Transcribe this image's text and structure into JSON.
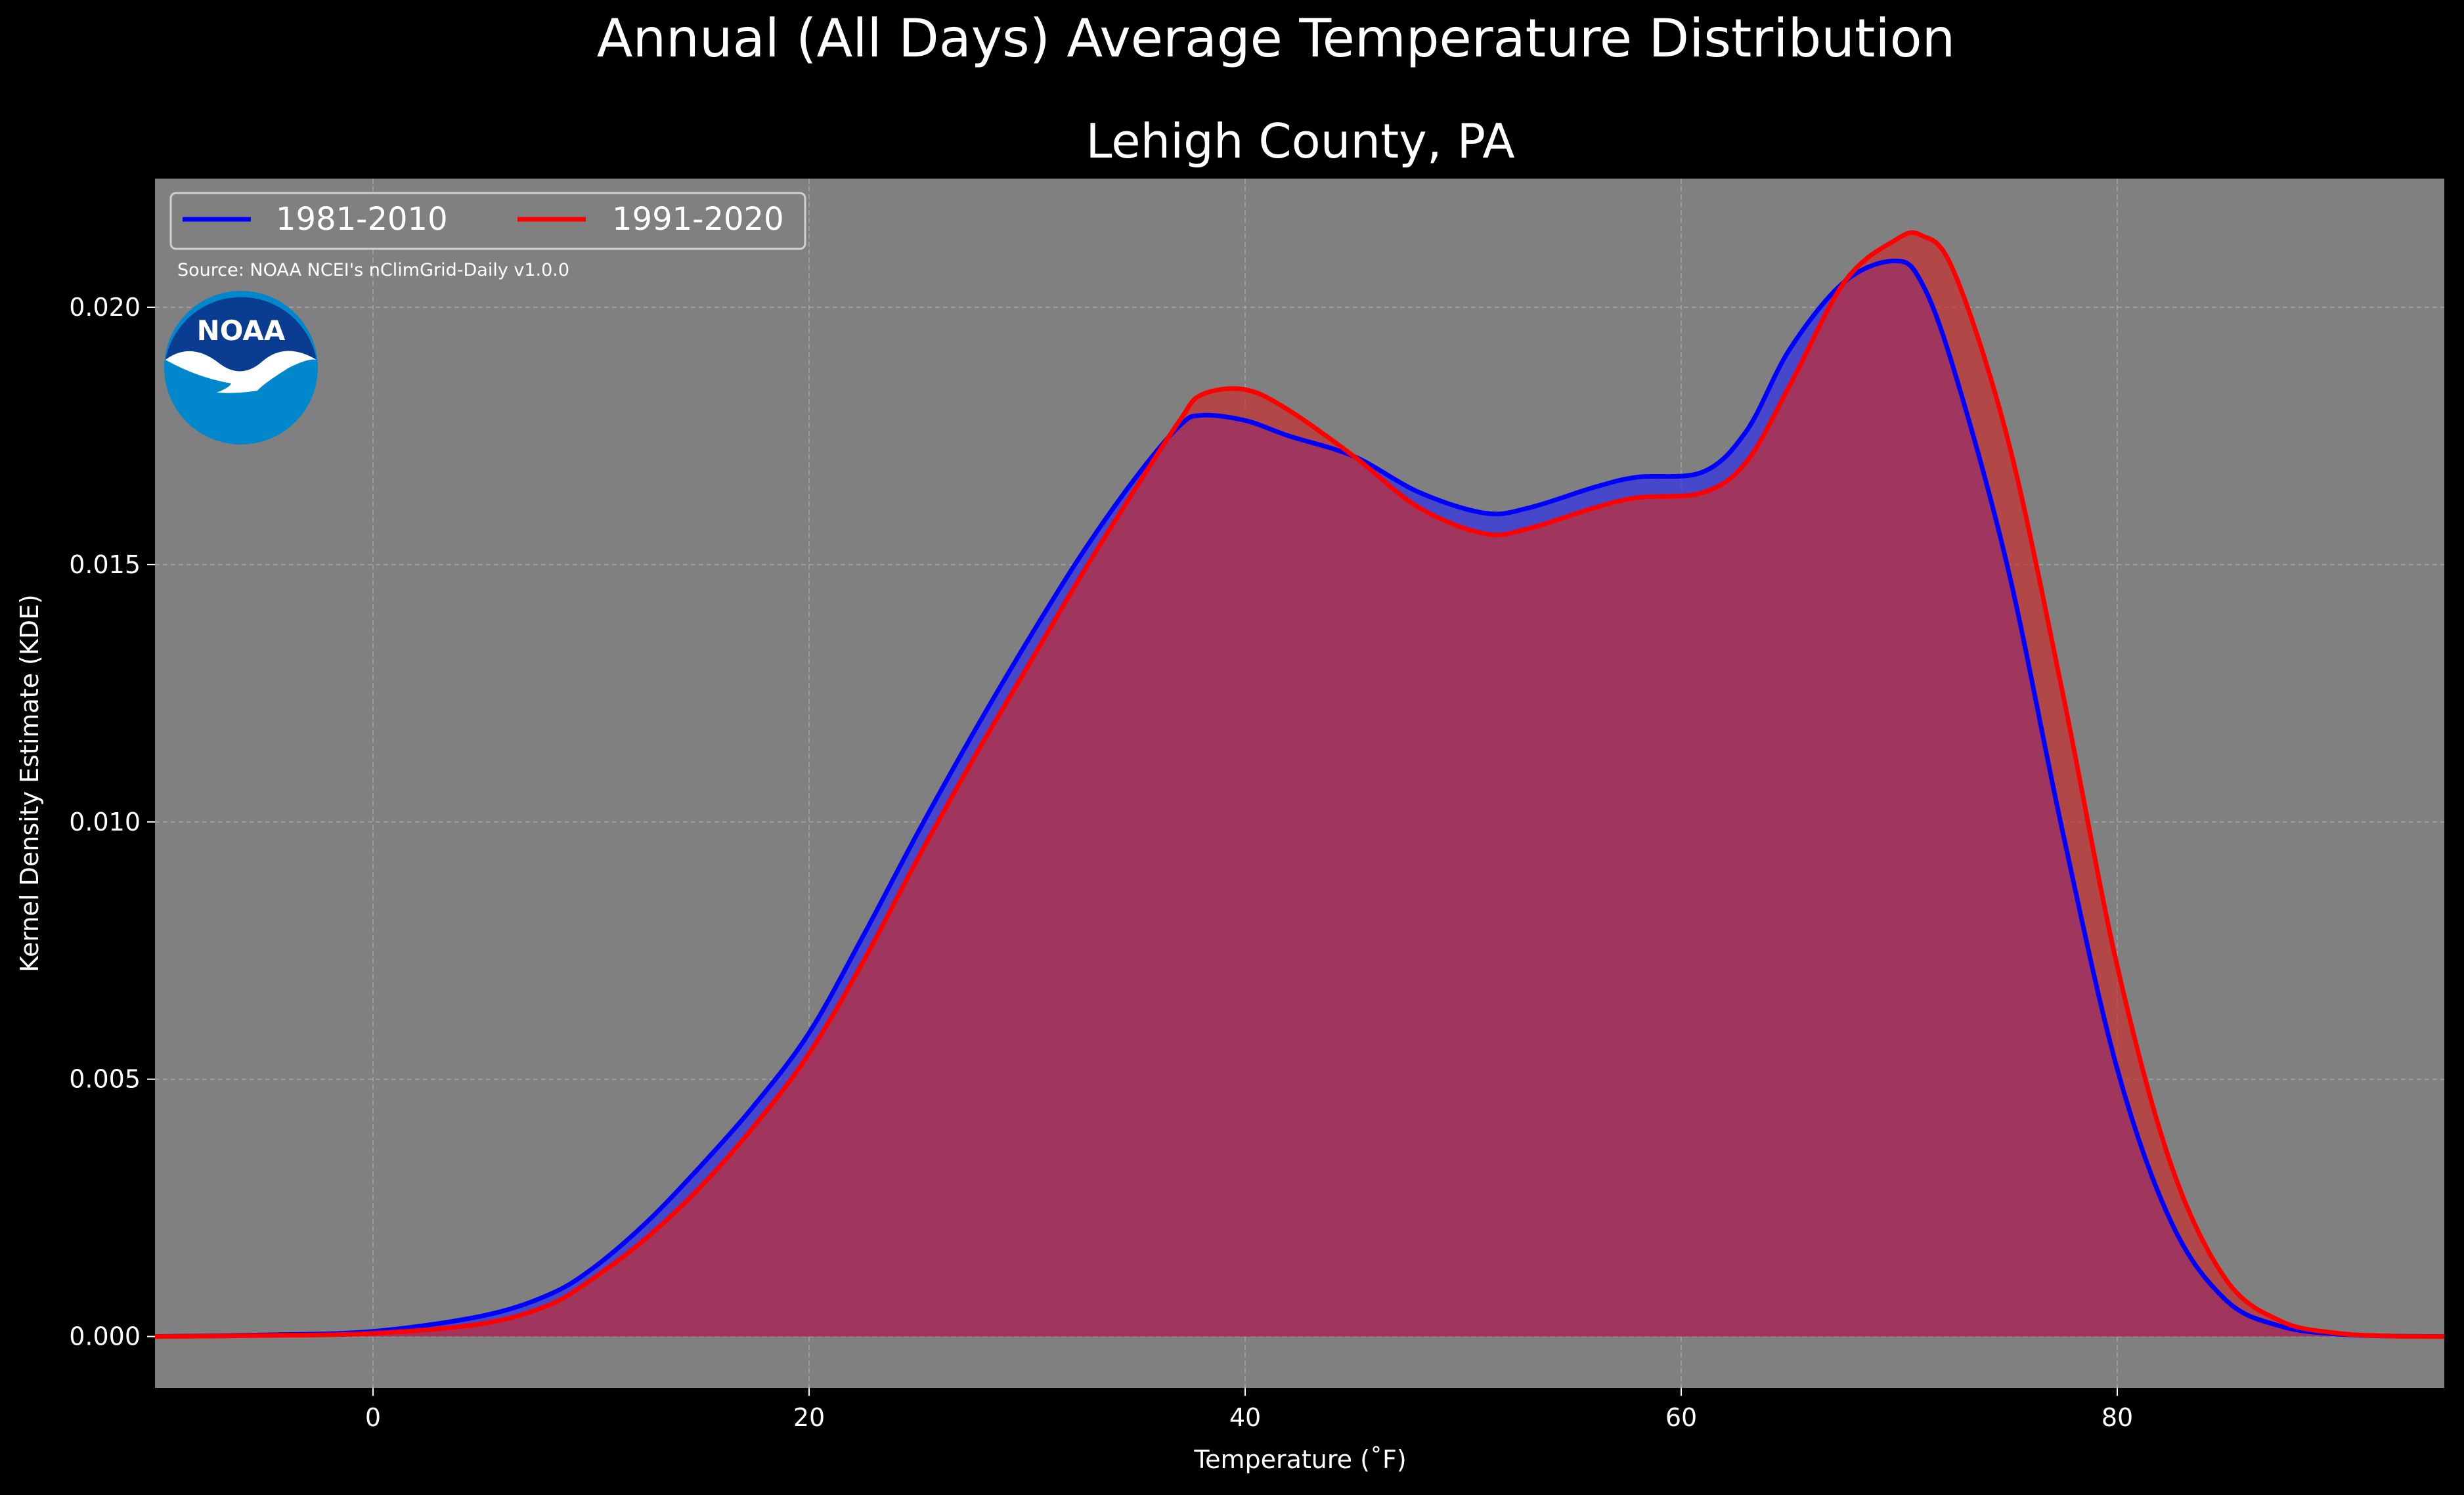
{
  "suptitle": "Annual (All Days) Average Temperature Distribution",
  "chart_data": {
    "type": "area",
    "title": "Lehigh County, PA",
    "xlabel": "Temperature ($^\\circ$F)",
    "xlabel_display": "Temperature (˚F)",
    "ylabel": "Kernel Density Estimate (KDE)",
    "xlim": [
      -10,
      95
    ],
    "ylim": [
      -0.001,
      0.0225
    ],
    "xticks": [
      0,
      20,
      40,
      60,
      80
    ],
    "xtick_labels": [
      "0",
      "20",
      "40",
      "60",
      "80"
    ],
    "yticks": [
      0.0,
      0.005,
      0.01,
      0.015,
      0.02
    ],
    "ytick_labels": [
      "0.000",
      "0.005",
      "0.010",
      "0.015",
      "0.020"
    ],
    "grid": true,
    "legend_position": "top-left",
    "x": [
      -10,
      -5,
      0,
      5,
      8,
      10,
      12.5,
      15,
      17.5,
      20,
      22.5,
      25,
      27.5,
      30,
      32.5,
      35,
      37,
      38,
      40,
      42,
      45,
      48,
      51,
      53,
      56,
      58,
      61,
      63,
      65,
      67.5,
      69.8,
      71,
      72.5,
      75,
      77.5,
      80,
      82.5,
      85,
      87.5,
      90,
      92.5,
      95
    ],
    "series": [
      {
        "name": "1981-2010",
        "color": "#0000ff",
        "fill": "#2f2fe8",
        "values": [
          0.0,
          3e-05,
          0.0001,
          0.0004,
          0.0008,
          0.0013,
          0.0022,
          0.0033,
          0.0045,
          0.0059,
          0.0078,
          0.0098,
          0.0117,
          0.0135,
          0.0152,
          0.0167,
          0.0177,
          0.0179,
          0.0178,
          0.0175,
          0.0171,
          0.0164,
          0.016,
          0.0161,
          0.0165,
          0.0167,
          0.0168,
          0.0176,
          0.0192,
          0.0205,
          0.0209,
          0.0205,
          0.0188,
          0.0149,
          0.0098,
          0.0052,
          0.0022,
          0.0007,
          0.0002,
          5e-05,
          1e-05,
          0.0
        ]
      },
      {
        "name": "1991-2020",
        "color": "#ff0000",
        "fill": "#c62f2f",
        "values": [
          0.0,
          2e-05,
          6e-05,
          0.00025,
          0.0006,
          0.0011,
          0.0019,
          0.0029,
          0.0041,
          0.0055,
          0.0073,
          0.0093,
          0.0112,
          0.013,
          0.0148,
          0.0165,
          0.0178,
          0.0183,
          0.0184,
          0.018,
          0.0171,
          0.0161,
          0.0156,
          0.0157,
          0.0161,
          0.0163,
          0.0164,
          0.017,
          0.0185,
          0.0205,
          0.0213,
          0.0214,
          0.0207,
          0.0174,
          0.0125,
          0.0072,
          0.0033,
          0.0011,
          0.0003,
          7e-05,
          1e-05,
          0.0
        ]
      }
    ],
    "annotation": "Source: NOAA NCEI's nClimGrid-Daily v1.0.0"
  },
  "logo": {
    "text": "NOAA",
    "outer_color": "#0087cc",
    "inner_color": "#0a3d91"
  },
  "colors": {
    "background": "#000000",
    "axes_face": "#808080",
    "text": "#ffffff",
    "grid": "#b0b0b0"
  }
}
